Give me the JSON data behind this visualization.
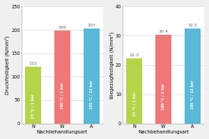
{
  "left_chart": {
    "categories": [
      "N",
      "W",
      "A"
    ],
    "values": [
      122,
      199,
      203
    ],
    "bar_labels": [
      "23 °C / 1 bar",
      "180 °C / 1 bar",
      "185 °C / 12 bar"
    ],
    "bar_colors": [
      "#b5d44a",
      "#f07878",
      "#5ab8d8"
    ],
    "ylabel": "Druckfestigkeit (N/mm²)",
    "xlabel": "Nachbehandlungsart",
    "ylim": [
      0,
      250
    ],
    "yticks": [
      0,
      50,
      100,
      150,
      200,
      250
    ]
  },
  "right_chart": {
    "categories": [
      "N",
      "W",
      "A"
    ],
    "values": [
      22.3,
      30.4,
      32.5
    ],
    "bar_labels": [
      "23 °C / 1 bar",
      "180 °C / 1 bar",
      "185 °C / 12 bar"
    ],
    "bar_colors": [
      "#b5d44a",
      "#f07878",
      "#5ab8d8"
    ],
    "ylabel": "Biegezugfestigkeit (N/mm²)",
    "xlabel": "Nachbehandlungsart",
    "ylim": [
      0,
      40
    ],
    "yticks": [
      0,
      10,
      20,
      30,
      40
    ]
  },
  "background_color": "#f0f0f0",
  "plot_bg_color": "#ffffff",
  "label_fontsize": 5.0,
  "tick_fontsize": 4.8,
  "value_label_fontsize": 4.5,
  "bar_label_fontsize": 3.6,
  "bar_width": 0.55
}
